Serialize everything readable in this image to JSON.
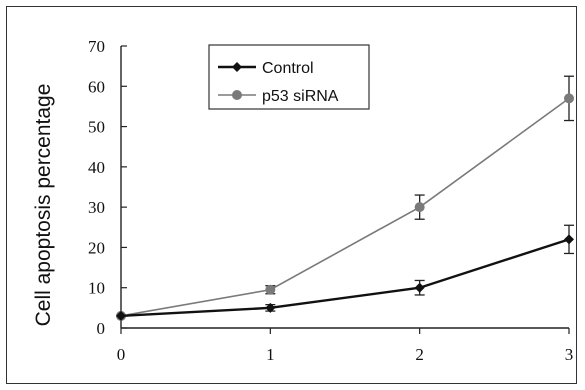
{
  "chart_data": {
    "type": "line",
    "title": "",
    "xlabel": "",
    "ylabel": "Cell apoptosis percentage",
    "x": [
      0,
      1,
      2,
      3
    ],
    "xlim": [
      0,
      3
    ],
    "ylim": [
      0,
      70
    ],
    "x_ticks": [
      "0",
      "1",
      "2",
      "3"
    ],
    "y_ticks": [
      "0",
      "10",
      "20",
      "30",
      "40",
      "50",
      "60",
      "70"
    ],
    "grid": false,
    "legend_position": "top-center",
    "series": [
      {
        "name": "Control",
        "marker": "diamond",
        "color": "#111111",
        "values": [
          3,
          5,
          10,
          22
        ],
        "errors": [
          0.5,
          0.8,
          1.8,
          3.5
        ]
      },
      {
        "name": "p53 siRNA",
        "marker": "circle",
        "color": "#7a7a7a",
        "values": [
          3,
          9.5,
          30,
          57
        ],
        "errors": [
          0.5,
          1,
          3,
          5.5
        ]
      }
    ]
  }
}
